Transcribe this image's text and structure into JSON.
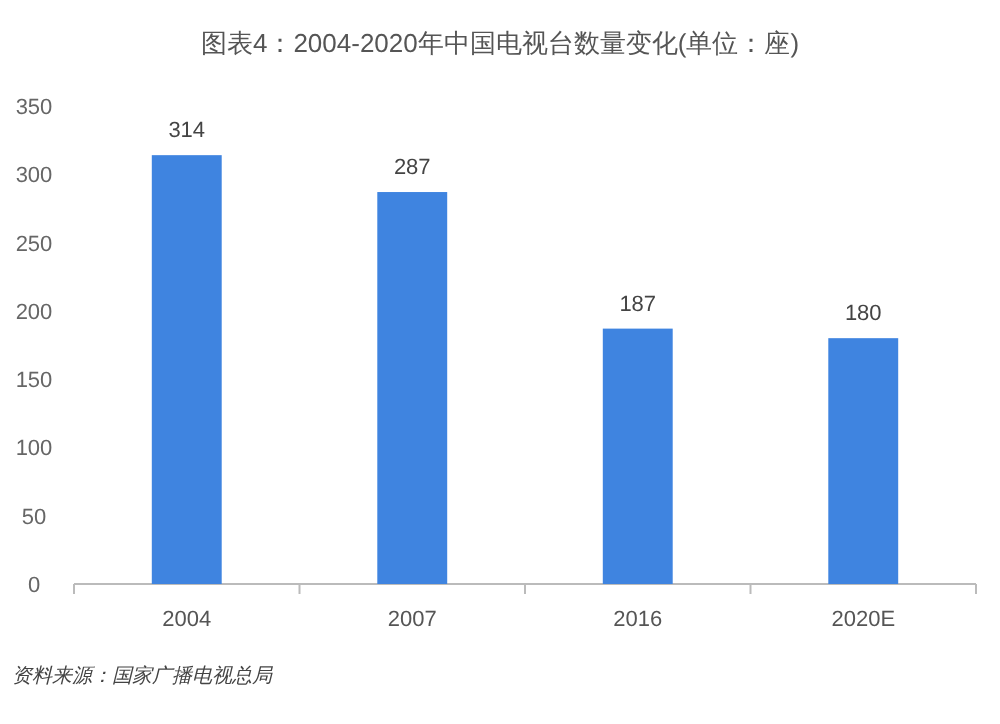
{
  "chart_data": {
    "type": "bar",
    "title": "图表4：2004-2020年中国电视台数量变化(单位：座)",
    "categories": [
      "2004",
      "2007",
      "2016",
      "2020E"
    ],
    "values": [
      314,
      287,
      187,
      180
    ],
    "color": "#3f84e0",
    "ylim": [
      0,
      350
    ],
    "yticks": [
      0,
      50,
      100,
      150,
      200,
      250,
      300,
      350
    ],
    "data_labels": true,
    "grid": false,
    "annotations": [
      "资料来源：国家广播电视总局"
    ]
  }
}
